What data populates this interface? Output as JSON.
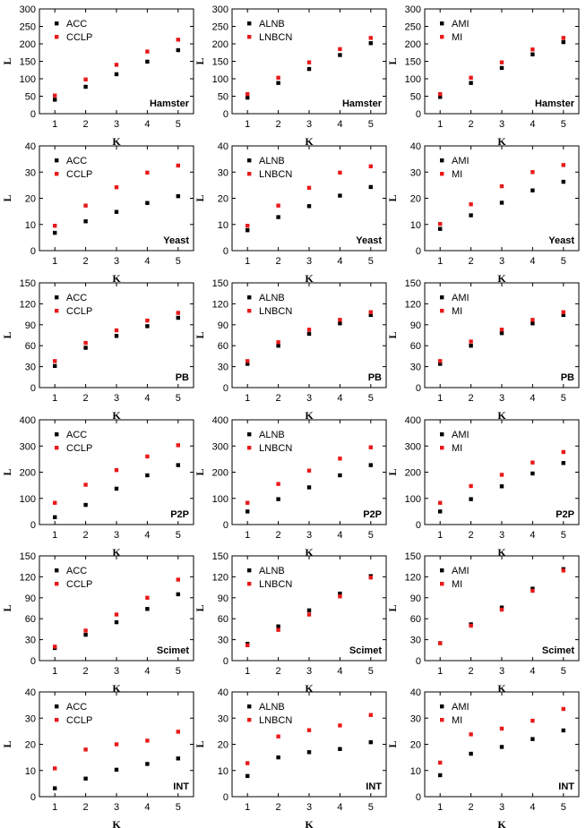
{
  "colors": {
    "series1": "#000000",
    "series2": "#e8191a",
    "axis": "#000000"
  },
  "chart_data": [
    {
      "type": "scatter",
      "dataset": "Hamster",
      "xlabel": "K",
      "ylabel": "L",
      "x": [
        1,
        2,
        3,
        4,
        5
      ],
      "xticks": [
        "1",
        "2",
        "3",
        "4",
        "5"
      ],
      "ylim": [
        0,
        300
      ],
      "yticks": [
        0,
        50,
        100,
        150,
        200,
        250,
        300
      ],
      "series": [
        {
          "name": "ACC",
          "values": [
            40,
            77,
            113,
            149,
            182
          ]
        },
        {
          "name": "CCLP",
          "values": [
            52,
            98,
            140,
            178,
            212
          ]
        }
      ]
    },
    {
      "type": "scatter",
      "dataset": "Hamster",
      "xlabel": "K",
      "ylabel": "L",
      "x": [
        1,
        2,
        3,
        4,
        5
      ],
      "xticks": [
        "1",
        "2",
        "3",
        "4",
        "5"
      ],
      "ylim": [
        0,
        300
      ],
      "yticks": [
        0,
        50,
        100,
        150,
        200,
        250,
        300
      ],
      "series": [
        {
          "name": "ALNB",
          "values": [
            46,
            88,
            128,
            168,
            202
          ]
        },
        {
          "name": "LNBCN",
          "values": [
            56,
            103,
            147,
            185,
            217
          ]
        }
      ]
    },
    {
      "type": "scatter",
      "dataset": "Hamster",
      "xlabel": "K",
      "ylabel": "L",
      "x": [
        1,
        2,
        3,
        4,
        5
      ],
      "xticks": [
        "1",
        "2",
        "3",
        "4",
        "5"
      ],
      "ylim": [
        0,
        300
      ],
      "yticks": [
        0,
        50,
        100,
        150,
        200,
        250,
        300
      ],
      "series": [
        {
          "name": "AMI",
          "values": [
            48,
            88,
            131,
            170,
            205
          ]
        },
        {
          "name": "MI",
          "values": [
            56,
            103,
            147,
            184,
            217
          ]
        }
      ]
    },
    {
      "type": "scatter",
      "dataset": "Yeast",
      "xlabel": "K",
      "ylabel": "L",
      "x": [
        1,
        2,
        3,
        4,
        5
      ],
      "xticks": [
        "1",
        "2",
        "3",
        "4",
        "5"
      ],
      "ylim": [
        0,
        40
      ],
      "yticks": [
        0,
        10,
        20,
        30,
        40
      ],
      "series": [
        {
          "name": "ACC",
          "values": [
            6.8,
            11.2,
            14.8,
            18.2,
            20.8
          ]
        },
        {
          "name": "CCLP",
          "values": [
            9.5,
            17.2,
            24.2,
            29.8,
            32.5
          ]
        }
      ]
    },
    {
      "type": "scatter",
      "dataset": "Yeast",
      "xlabel": "K",
      "ylabel": "L",
      "x": [
        1,
        2,
        3,
        4,
        5
      ],
      "xticks": [
        "1",
        "2",
        "3",
        "4",
        "5"
      ],
      "ylim": [
        0,
        40
      ],
      "yticks": [
        0,
        10,
        20,
        30,
        40
      ],
      "series": [
        {
          "name": "ALNB",
          "values": [
            7.8,
            12.8,
            17.0,
            21.0,
            24.3
          ]
        },
        {
          "name": "LNBCN",
          "values": [
            9.5,
            17.2,
            24.0,
            29.8,
            32.2
          ]
        }
      ]
    },
    {
      "type": "scatter",
      "dataset": "Yeast",
      "xlabel": "K",
      "ylabel": "L",
      "x": [
        1,
        2,
        3,
        4,
        5
      ],
      "xticks": [
        "1",
        "2",
        "3",
        "4",
        "5"
      ],
      "ylim": [
        0,
        40
      ],
      "yticks": [
        0,
        10,
        20,
        30,
        40
      ],
      "series": [
        {
          "name": "AMI",
          "values": [
            8.3,
            13.5,
            18.3,
            23.0,
            26.3
          ]
        },
        {
          "name": "MI",
          "values": [
            10.2,
            17.7,
            24.6,
            30.0,
            32.7
          ]
        }
      ]
    },
    {
      "type": "scatter",
      "dataset": "PB",
      "xlabel": "K",
      "ylabel": "L",
      "x": [
        1,
        2,
        3,
        4,
        5
      ],
      "xticks": [
        "1",
        "2",
        "3",
        "4",
        "5"
      ],
      "ylim": [
        0,
        150
      ],
      "yticks": [
        0,
        30,
        60,
        90,
        120,
        150
      ],
      "series": [
        {
          "name": "ACC",
          "values": [
            31,
            57,
            74,
            88,
            100
          ]
        },
        {
          "name": "CCLP",
          "values": [
            38,
            64,
            82,
            96,
            107
          ]
        }
      ]
    },
    {
      "type": "scatter",
      "dataset": "PB",
      "xlabel": "K",
      "ylabel": "L",
      "x": [
        1,
        2,
        3,
        4,
        5
      ],
      "xticks": [
        "1",
        "2",
        "3",
        "4",
        "5"
      ],
      "ylim": [
        0,
        150
      ],
      "yticks": [
        0,
        30,
        60,
        90,
        120,
        150
      ],
      "series": [
        {
          "name": "ALNB",
          "values": [
            34,
            60,
            77,
            92,
            104
          ]
        },
        {
          "name": "LNBCN",
          "values": [
            38,
            65,
            83,
            97,
            108
          ]
        }
      ]
    },
    {
      "type": "scatter",
      "dataset": "PB",
      "xlabel": "K",
      "ylabel": "L",
      "x": [
        1,
        2,
        3,
        4,
        5
      ],
      "xticks": [
        "1",
        "2",
        "3",
        "4",
        "5"
      ],
      "ylim": [
        0,
        150
      ],
      "yticks": [
        0,
        30,
        60,
        90,
        120,
        150
      ],
      "series": [
        {
          "name": "AMI",
          "values": [
            34,
            60,
            78,
            92,
            104
          ]
        },
        {
          "name": "MI",
          "values": [
            38,
            66,
            83,
            97,
            108
          ]
        }
      ]
    },
    {
      "type": "scatter",
      "dataset": "P2P",
      "xlabel": "K",
      "ylabel": "L",
      "x": [
        1,
        2,
        3,
        4,
        5
      ],
      "xticks": [
        "1",
        "2",
        "3",
        "4",
        "5"
      ],
      "ylim": [
        0,
        400
      ],
      "yticks": [
        0,
        100,
        200,
        300,
        400
      ],
      "series": [
        {
          "name": "ACC",
          "values": [
            28,
            75,
            137,
            188,
            227
          ]
        },
        {
          "name": "CCLP",
          "values": [
            83,
            152,
            208,
            260,
            303
          ]
        }
      ]
    },
    {
      "type": "scatter",
      "dataset": "P2P",
      "xlabel": "K",
      "ylabel": "L",
      "x": [
        1,
        2,
        3,
        4,
        5
      ],
      "xticks": [
        "1",
        "2",
        "3",
        "4",
        "5"
      ],
      "ylim": [
        0,
        400
      ],
      "yticks": [
        0,
        100,
        200,
        300,
        400
      ],
      "series": [
        {
          "name": "ALNB",
          "values": [
            50,
            97,
            142,
            188,
            227
          ]
        },
        {
          "name": "LNBCN",
          "values": [
            83,
            155,
            206,
            252,
            295
          ]
        }
      ]
    },
    {
      "type": "scatter",
      "dataset": "P2P",
      "xlabel": "K",
      "ylabel": "L",
      "x": [
        1,
        2,
        3,
        4,
        5
      ],
      "xticks": [
        "1",
        "2",
        "3",
        "4",
        "5"
      ],
      "ylim": [
        0,
        400
      ],
      "yticks": [
        0,
        100,
        200,
        300,
        400
      ],
      "series": [
        {
          "name": "AMI",
          "values": [
            50,
            97,
            146,
            195,
            235
          ]
        },
        {
          "name": "MI",
          "values": [
            83,
            147,
            190,
            237,
            277
          ]
        }
      ]
    },
    {
      "type": "scatter",
      "dataset": "Scimet",
      "xlabel": "K",
      "ylabel": "L",
      "x": [
        1,
        2,
        3,
        4,
        5
      ],
      "xticks": [
        "1",
        "2",
        "3",
        "4",
        "5"
      ],
      "ylim": [
        0,
        150
      ],
      "yticks": [
        0,
        30,
        60,
        90,
        120,
        150
      ],
      "series": [
        {
          "name": "ACC",
          "values": [
            18,
            37,
            55,
            74,
            95
          ]
        },
        {
          "name": "CCLP",
          "values": [
            20,
            43,
            66,
            90,
            116
          ]
        }
      ]
    },
    {
      "type": "scatter",
      "dataset": "Scimet",
      "xlabel": "K",
      "ylabel": "L",
      "x": [
        1,
        2,
        3,
        4,
        5
      ],
      "xticks": [
        "1",
        "2",
        "3",
        "4",
        "5"
      ],
      "ylim": [
        0,
        150
      ],
      "yticks": [
        0,
        30,
        60,
        90,
        120,
        150
      ],
      "series": [
        {
          "name": "ALNB",
          "values": [
            24,
            49,
            72,
            96,
            121
          ]
        },
        {
          "name": "LNBCN",
          "values": [
            22,
            44,
            66,
            92,
            119
          ]
        }
      ]
    },
    {
      "type": "scatter",
      "dataset": "Scimet",
      "xlabel": "K",
      "ylabel": "L",
      "x": [
        1,
        2,
        3,
        4,
        5
      ],
      "xticks": [
        "1",
        "2",
        "3",
        "4",
        "5"
      ],
      "ylim": [
        0,
        150
      ],
      "yticks": [
        0,
        30,
        60,
        90,
        120,
        150
      ],
      "series": [
        {
          "name": "AMI",
          "values": [
            25,
            52,
            76,
            103,
            131
          ]
        },
        {
          "name": "MI",
          "values": [
            25,
            50,
            73,
            100,
            129
          ]
        }
      ]
    },
    {
      "type": "scatter",
      "dataset": "INT",
      "xlabel": "K",
      "ylabel": "L",
      "x": [
        1,
        2,
        3,
        4,
        5
      ],
      "xticks": [
        "1",
        "2",
        "3",
        "4",
        "5"
      ],
      "ylim": [
        0,
        40
      ],
      "yticks": [
        0,
        10,
        20,
        30,
        40
      ],
      "series": [
        {
          "name": "ACC",
          "values": [
            3.2,
            6.9,
            10.3,
            12.5,
            14.6
          ]
        },
        {
          "name": "CCLP",
          "values": [
            10.8,
            18.0,
            20.0,
            21.4,
            24.8
          ]
        }
      ]
    },
    {
      "type": "scatter",
      "dataset": "INT",
      "xlabel": "K",
      "ylabel": "L",
      "x": [
        1,
        2,
        3,
        4,
        5
      ],
      "xticks": [
        "1",
        "2",
        "3",
        "4",
        "5"
      ],
      "ylim": [
        0,
        40
      ],
      "yticks": [
        0,
        10,
        20,
        30,
        40
      ],
      "series": [
        {
          "name": "ALNB",
          "values": [
            7.9,
            15.0,
            17.0,
            18.2,
            20.8
          ]
        },
        {
          "name": "LNBCN",
          "values": [
            12.8,
            23.0,
            25.4,
            27.2,
            31.2
          ]
        }
      ]
    },
    {
      "type": "scatter",
      "dataset": "INT",
      "xlabel": "K",
      "ylabel": "L",
      "x": [
        1,
        2,
        3,
        4,
        5
      ],
      "xticks": [
        "1",
        "2",
        "3",
        "4",
        "5"
      ],
      "ylim": [
        0,
        40
      ],
      "yticks": [
        0,
        10,
        20,
        30,
        40
      ],
      "series": [
        {
          "name": "AMI",
          "values": [
            8.2,
            16.4,
            19.0,
            22.0,
            25.3
          ]
        },
        {
          "name": "MI",
          "values": [
            13.0,
            23.8,
            26.0,
            29.0,
            33.5
          ]
        }
      ]
    }
  ]
}
